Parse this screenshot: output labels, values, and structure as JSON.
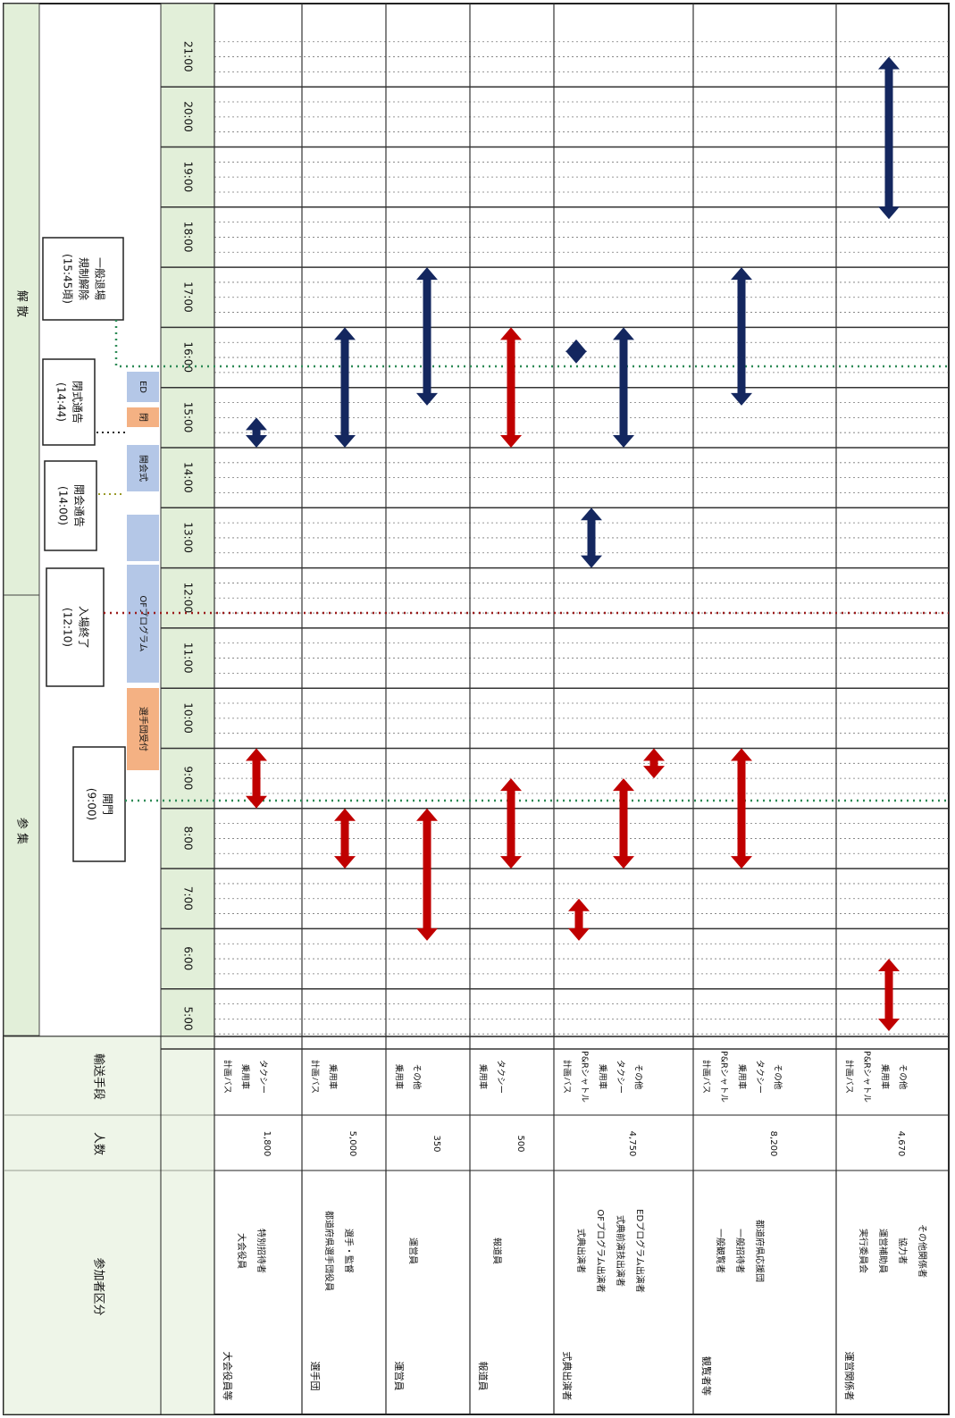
{
  "header": {
    "section_before": "参 集",
    "section_after": "解 散",
    "category_label": "参加者区分",
    "count_label": "人数",
    "transport_label": "輸送手段"
  },
  "times": [
    "5:00",
    "6:00",
    "7:00",
    "8:00",
    "9:00",
    "10:00",
    "11:00",
    "12:00",
    "13:00",
    "14:00",
    "15:00",
    "16:00",
    "17:00",
    "18:00",
    "19:00",
    "20:00",
    "21:00"
  ],
  "events": {
    "open": "開門\n(9:00)",
    "entry_end": "入場終了\n(12:10)",
    "opening_notice": "開会通告\n(14:00)",
    "closing_notice": "閉式通告\n(14:44)",
    "exit": "一般退場\n規制解除\n(15:45頃)"
  },
  "bars": {
    "athlete_reception": "選手団受付",
    "of_program": "OFプログラム",
    "opening_ceremony": "開会式",
    "ed": "ED",
    "closing": "閉"
  },
  "rows": [
    {
      "group": "大会役員等",
      "items": [
        "大会役員",
        "特別招待者"
      ],
      "count": "1,800",
      "transport": [
        "計画バス",
        "乗用車",
        "タクシー"
      ]
    },
    {
      "group": "選手団",
      "items": [
        "都道府県選手団役員",
        "選手・監督"
      ],
      "count": "5,000",
      "transport": [
        "計画バス",
        "乗用車"
      ]
    },
    {
      "group": "運営員",
      "items": [
        "運営員"
      ],
      "count": "350",
      "transport": [
        "乗用車",
        "その他"
      ]
    },
    {
      "group": "報道員",
      "items": [
        "報道員"
      ],
      "count": "500",
      "transport": [
        "乗用車",
        "タクシー"
      ]
    },
    {
      "group": "式典出演者",
      "items": [
        "式典出演者",
        "OFプログラム出演者",
        "式典前演技出演者",
        "EDプログラム出演者"
      ],
      "count": "4,750",
      "transport": [
        "計画バス",
        "P&Rシャトル",
        "乗用車",
        "タクシー",
        "その他"
      ]
    },
    {
      "group": "観覧者等",
      "items": [
        "一般観覧者",
        "一般招待者",
        "都道府県応援団"
      ],
      "count": "8,200",
      "transport": [
        "計画バス",
        "P&Rシャトル",
        "乗用車",
        "タクシー",
        "その他"
      ]
    },
    {
      "group": "運営関係者",
      "items": [
        "実行委員会",
        "運営補助員",
        "協力者",
        "その他関係者"
      ],
      "count": "4,670",
      "transport": [
        "計画バス",
        "P&Rシャトル",
        "乗用車",
        "その他"
      ]
    }
  ],
  "colors": {
    "grid_header_bg": "#e2efd9",
    "arrive_arrow": "#c00000",
    "depart_arrow": "#14275f",
    "bar_orange": "#f4b183",
    "bar_blue": "#b4c7e7",
    "green_dot": "#2e8b57",
    "red_dot": "#9b1b1b"
  }
}
